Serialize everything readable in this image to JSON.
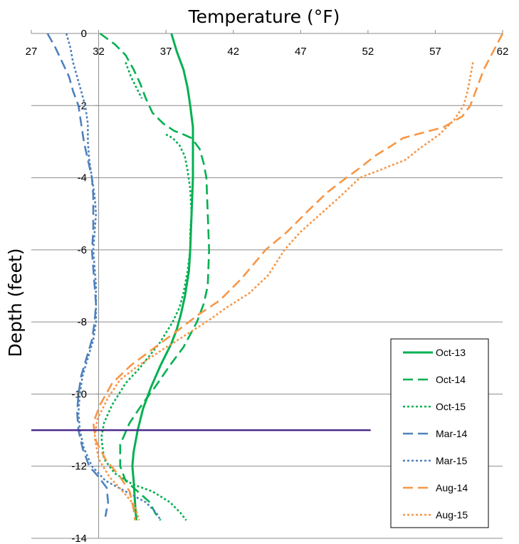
{
  "chart_data": {
    "type": "line",
    "title": "Temperature (°F)",
    "xlabel": "Temperature (°F)",
    "ylabel": "Depth (feet)",
    "xlim": [
      27,
      62
    ],
    "ylim": [
      -14,
      0
    ],
    "x_ticks": [
      27,
      32,
      37,
      42,
      47,
      52,
      57,
      62
    ],
    "y_ticks": [
      0,
      -2,
      -4,
      -6,
      -8,
      -10,
      -12,
      -14
    ],
    "x_tick_labels": [
      "27",
      "32",
      "37",
      "42",
      "47",
      "52",
      "57",
      "62"
    ],
    "y_tick_labels": [
      "0",
      "-2",
      "-4",
      "-6",
      "-8",
      "-10",
      "-12",
      "-14"
    ],
    "grid": "horizontal",
    "legend_position": "bottom-right",
    "reference_line": {
      "depth": -11,
      "x_start": 27,
      "x_end": 52.2,
      "color": "#4b2a8c"
    },
    "series": [
      {
        "name": "Oct-13",
        "color": "#00b050",
        "style": "solid",
        "points": [
          [
            37.4,
            0
          ],
          [
            37.8,
            -0.5
          ],
          [
            38.3,
            -1
          ],
          [
            38.6,
            -1.5
          ],
          [
            38.8,
            -2
          ],
          [
            39.0,
            -2.6
          ],
          [
            39.0,
            -3
          ],
          [
            39.0,
            -4
          ],
          [
            38.9,
            -5
          ],
          [
            38.8,
            -6
          ],
          [
            38.7,
            -6.6
          ],
          [
            38.4,
            -7.3
          ],
          [
            38.1,
            -7.8
          ],
          [
            37.8,
            -8.2
          ],
          [
            37.4,
            -8.6
          ],
          [
            36.6,
            -9.2
          ],
          [
            35.9,
            -9.8
          ],
          [
            35.3,
            -10.4
          ],
          [
            34.9,
            -11
          ],
          [
            34.6,
            -11.6
          ],
          [
            34.5,
            -12
          ],
          [
            34.6,
            -12.4
          ],
          [
            34.7,
            -13
          ],
          [
            34.8,
            -13.5
          ]
        ]
      },
      {
        "name": "Oct-14",
        "color": "#00b050",
        "style": "dashed",
        "points": [
          [
            32.1,
            0
          ],
          [
            33.2,
            -0.3
          ],
          [
            34.0,
            -0.6
          ],
          [
            34.6,
            -1
          ],
          [
            35.1,
            -1.4
          ],
          [
            35.5,
            -1.8
          ],
          [
            36.0,
            -2.2
          ],
          [
            36.8,
            -2.5
          ],
          [
            37.6,
            -2.7
          ],
          [
            38.3,
            -2.8
          ],
          [
            38.9,
            -2.9
          ],
          [
            39.5,
            -3.2
          ],
          [
            39.8,
            -3.6
          ],
          [
            40.0,
            -4
          ],
          [
            40.1,
            -5
          ],
          [
            40.2,
            -6
          ],
          [
            40.1,
            -7
          ],
          [
            39.8,
            -7.5
          ],
          [
            39.3,
            -8
          ],
          [
            38.3,
            -8.7
          ],
          [
            37.3,
            -9.2
          ],
          [
            36.2,
            -9.8
          ],
          [
            35.2,
            -10.3
          ],
          [
            34.3,
            -10.8
          ],
          [
            33.6,
            -11.4
          ],
          [
            33.6,
            -12
          ],
          [
            34.0,
            -12.4
          ],
          [
            34.9,
            -12.7
          ],
          [
            35.8,
            -13
          ],
          [
            36.2,
            -13.3
          ],
          [
            36.6,
            -13.5
          ]
        ]
      },
      {
        "name": "Oct-15",
        "color": "#00b050",
        "style": "dotted",
        "points": [
          [
            34.0,
            -0.8
          ],
          [
            34.4,
            -1.2
          ],
          [
            34.8,
            -1.5
          ],
          [
            35.2,
            -1.8
          ]
        ],
        "points2": [
          [
            37.0,
            -2.8
          ],
          [
            37.5,
            -2.9
          ],
          [
            38.0,
            -3.1
          ],
          [
            38.4,
            -3.4
          ],
          [
            38.6,
            -3.8
          ],
          [
            38.8,
            -4.3
          ],
          [
            38.9,
            -5
          ],
          [
            38.8,
            -5.5
          ],
          [
            38.8,
            -6
          ],
          [
            38.6,
            -6.6
          ],
          [
            38.3,
            -7.2
          ],
          [
            38.0,
            -7.6
          ],
          [
            37.5,
            -8
          ],
          [
            36.5,
            -8.6
          ],
          [
            35.0,
            -9.3
          ],
          [
            34.0,
            -9.7
          ],
          [
            33.0,
            -10.3
          ],
          [
            32.4,
            -10.8
          ],
          [
            32.2,
            -11.2
          ],
          [
            32.4,
            -11.8
          ],
          [
            33.2,
            -12.2
          ],
          [
            34.5,
            -12.5
          ],
          [
            36.0,
            -12.7
          ],
          [
            37.3,
            -13
          ],
          [
            38.1,
            -13.3
          ],
          [
            38.5,
            -13.5
          ]
        ]
      },
      {
        "name": "Mar-14",
        "color": "#4f81bd",
        "style": "dashed",
        "points": [
          [
            28.2,
            0
          ],
          [
            28.8,
            -0.4
          ],
          [
            29.3,
            -0.8
          ],
          [
            29.8,
            -1.2
          ],
          [
            30.1,
            -1.6
          ],
          [
            30.5,
            -2
          ],
          [
            30.7,
            -2.5
          ],
          [
            30.9,
            -3
          ],
          [
            31.2,
            -3.5
          ],
          [
            31.5,
            -4
          ],
          [
            31.6,
            -4.5
          ],
          [
            31.6,
            -5
          ],
          [
            31.6,
            -5.5
          ],
          [
            31.5,
            -6
          ],
          [
            31.6,
            -6.5
          ],
          [
            31.7,
            -7
          ],
          [
            31.8,
            -7.5
          ],
          [
            31.7,
            -8
          ],
          [
            31.5,
            -8.5
          ],
          [
            31.1,
            -9
          ],
          [
            30.7,
            -9.5
          ],
          [
            30.5,
            -10
          ],
          [
            30.4,
            -10.5
          ],
          [
            30.5,
            -11
          ],
          [
            30.8,
            -11.5
          ],
          [
            31.3,
            -12
          ],
          [
            32.0,
            -12.3
          ],
          [
            32.6,
            -12.6
          ],
          [
            32.7,
            -13
          ],
          [
            32.5,
            -13.4
          ]
        ]
      },
      {
        "name": "Mar-15",
        "color": "#4f81bd",
        "style": "dotted",
        "points": [
          [
            29.6,
            0
          ],
          [
            29.9,
            -0.4
          ],
          [
            30.1,
            -0.8
          ],
          [
            30.4,
            -1.2
          ],
          [
            30.7,
            -1.6
          ],
          [
            31.0,
            -2
          ],
          [
            31.2,
            -2.5
          ],
          [
            31.2,
            -3
          ],
          [
            31.3,
            -3.5
          ],
          [
            31.5,
            -4
          ],
          [
            31.7,
            -4.5
          ],
          [
            31.8,
            -5
          ],
          [
            31.7,
            -5.5
          ],
          [
            31.6,
            -6
          ],
          [
            31.7,
            -6.5
          ],
          [
            31.8,
            -7
          ],
          [
            31.8,
            -7.5
          ],
          [
            31.8,
            -8
          ],
          [
            31.6,
            -8.5
          ],
          [
            31.2,
            -9
          ],
          [
            30.8,
            -9.5
          ],
          [
            30.6,
            -10
          ],
          [
            30.5,
            -10.5
          ],
          [
            30.6,
            -11
          ],
          [
            30.9,
            -11.5
          ],
          [
            31.5,
            -12
          ],
          [
            32.5,
            -12.4
          ],
          [
            34.0,
            -12.7
          ],
          [
            35.5,
            -13
          ],
          [
            36.3,
            -13.3
          ],
          [
            36.6,
            -13.5
          ]
        ]
      },
      {
        "name": "Aug-14",
        "color": "#f79646",
        "style": "dashed",
        "points": [
          [
            62.0,
            0
          ],
          [
            61.3,
            -0.5
          ],
          [
            60.6,
            -1
          ],
          [
            60.1,
            -1.5
          ],
          [
            59.6,
            -2
          ],
          [
            59.0,
            -2.3
          ],
          [
            57.6,
            -2.6
          ],
          [
            55.6,
            -2.8
          ],
          [
            54.6,
            -2.9
          ],
          [
            53.8,
            -3.1
          ],
          [
            52.5,
            -3.4
          ],
          [
            51.5,
            -3.7
          ],
          [
            50.4,
            -4
          ],
          [
            49.0,
            -4.4
          ],
          [
            47.6,
            -4.9
          ],
          [
            46.0,
            -5.5
          ],
          [
            44.4,
            -6
          ],
          [
            42.6,
            -6.8
          ],
          [
            41.0,
            -7.4
          ],
          [
            39.4,
            -7.8
          ],
          [
            38.0,
            -8.2
          ],
          [
            36.2,
            -8.7
          ],
          [
            34.4,
            -9.2
          ],
          [
            33.0,
            -9.7
          ],
          [
            32.1,
            -10.3
          ],
          [
            31.6,
            -10.8
          ],
          [
            31.8,
            -11.3
          ],
          [
            32.5,
            -11.8
          ],
          [
            33.6,
            -12.3
          ],
          [
            34.3,
            -12.7
          ],
          [
            34.6,
            -13.2
          ],
          [
            34.7,
            -13.5
          ]
        ]
      },
      {
        "name": "Aug-15",
        "color": "#f79646",
        "style": "dotted",
        "points": [
          [
            59.8,
            -0.8
          ],
          [
            59.6,
            -1.2
          ],
          [
            59.4,
            -1.6
          ],
          [
            59.1,
            -2
          ],
          [
            58.4,
            -2.4
          ],
          [
            57.3,
            -2.8
          ],
          [
            55.8,
            -3.2
          ],
          [
            54.8,
            -3.5
          ],
          [
            52.8,
            -3.8
          ],
          [
            51.4,
            -4
          ],
          [
            50.0,
            -4.5
          ],
          [
            48.5,
            -5
          ],
          [
            47.0,
            -5.5
          ],
          [
            45.8,
            -6
          ],
          [
            44.6,
            -6.7
          ],
          [
            43.2,
            -7.2
          ],
          [
            41.5,
            -7.6
          ],
          [
            40.0,
            -8
          ],
          [
            38.3,
            -8.4
          ],
          [
            36.6,
            -8.8
          ],
          [
            35.0,
            -9.2
          ],
          [
            33.6,
            -9.6
          ],
          [
            32.7,
            -10.1
          ],
          [
            31.9,
            -10.7
          ],
          [
            31.7,
            -11.2
          ],
          [
            32.0,
            -11.8
          ],
          [
            32.8,
            -12.3
          ],
          [
            33.8,
            -12.7
          ],
          [
            34.7,
            -13.1
          ],
          [
            35.0,
            -13.5
          ]
        ]
      }
    ]
  }
}
